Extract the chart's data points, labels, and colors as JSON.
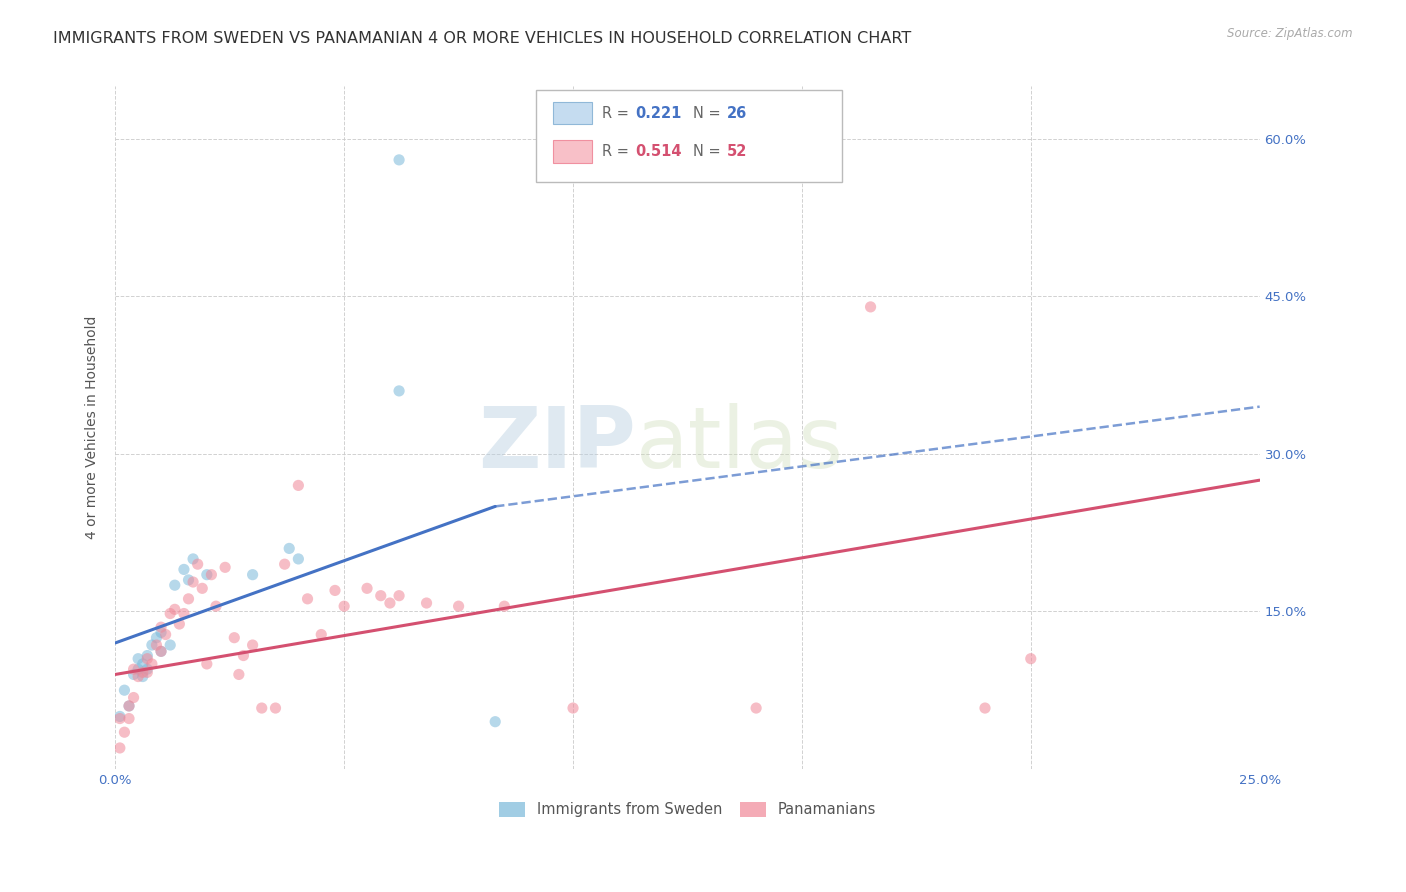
{
  "title": "IMMIGRANTS FROM SWEDEN VS PANAMANIAN 4 OR MORE VEHICLES IN HOUSEHOLD CORRELATION CHART",
  "source": "Source: ZipAtlas.com",
  "ylabel": "4 or more Vehicles in Household",
  "xlim": [
    0.0,
    0.25
  ],
  "ylim": [
    0.0,
    0.65
  ],
  "xticks": [
    0.0,
    0.05,
    0.1,
    0.15,
    0.2,
    0.25
  ],
  "yticks": [
    0.0,
    0.15,
    0.3,
    0.45,
    0.6
  ],
  "xticklabels": [
    "0.0%",
    "",
    "",
    "",
    "",
    "25.0%"
  ],
  "yticklabels_right": [
    "",
    "15.0%",
    "30.0%",
    "45.0%",
    "60.0%"
  ],
  "legend_labels_bottom": [
    "Immigrants from Sweden",
    "Panamanians"
  ],
  "watermark_zip": "ZIP",
  "watermark_atlas": "atlas",
  "sweden_color": "#7ab8d9",
  "panama_color": "#f08898",
  "sweden_line_color": "#4472c4",
  "panama_line_color": "#d45070",
  "sweden_scatter": [
    [
      0.001,
      0.05
    ],
    [
      0.002,
      0.075
    ],
    [
      0.003,
      0.06
    ],
    [
      0.004,
      0.09
    ],
    [
      0.005,
      0.095
    ],
    [
      0.006,
      0.1
    ],
    [
      0.005,
      0.105
    ],
    [
      0.007,
      0.108
    ],
    [
      0.007,
      0.095
    ],
    [
      0.006,
      0.088
    ],
    [
      0.008,
      0.118
    ],
    [
      0.009,
      0.125
    ],
    [
      0.01,
      0.112
    ],
    [
      0.01,
      0.13
    ],
    [
      0.012,
      0.118
    ],
    [
      0.013,
      0.175
    ],
    [
      0.015,
      0.19
    ],
    [
      0.016,
      0.18
    ],
    [
      0.017,
      0.2
    ],
    [
      0.02,
      0.185
    ],
    [
      0.03,
      0.185
    ],
    [
      0.038,
      0.21
    ],
    [
      0.04,
      0.2
    ],
    [
      0.062,
      0.36
    ],
    [
      0.062,
      0.58
    ],
    [
      0.083,
      0.045
    ]
  ],
  "panama_scatter": [
    [
      0.001,
      0.02
    ],
    [
      0.002,
      0.035
    ],
    [
      0.001,
      0.048
    ],
    [
      0.003,
      0.048
    ],
    [
      0.003,
      0.06
    ],
    [
      0.004,
      0.068
    ],
    [
      0.004,
      0.095
    ],
    [
      0.005,
      0.088
    ],
    [
      0.006,
      0.092
    ],
    [
      0.007,
      0.105
    ],
    [
      0.007,
      0.092
    ],
    [
      0.008,
      0.1
    ],
    [
      0.009,
      0.118
    ],
    [
      0.01,
      0.112
    ],
    [
      0.01,
      0.135
    ],
    [
      0.011,
      0.128
    ],
    [
      0.012,
      0.148
    ],
    [
      0.013,
      0.152
    ],
    [
      0.014,
      0.138
    ],
    [
      0.015,
      0.148
    ],
    [
      0.016,
      0.162
    ],
    [
      0.017,
      0.178
    ],
    [
      0.018,
      0.195
    ],
    [
      0.019,
      0.172
    ],
    [
      0.02,
      0.1
    ],
    [
      0.021,
      0.185
    ],
    [
      0.022,
      0.155
    ],
    [
      0.024,
      0.192
    ],
    [
      0.026,
      0.125
    ],
    [
      0.027,
      0.09
    ],
    [
      0.028,
      0.108
    ],
    [
      0.03,
      0.118
    ],
    [
      0.032,
      0.058
    ],
    [
      0.035,
      0.058
    ],
    [
      0.037,
      0.195
    ],
    [
      0.04,
      0.27
    ],
    [
      0.042,
      0.162
    ],
    [
      0.045,
      0.128
    ],
    [
      0.048,
      0.17
    ],
    [
      0.05,
      0.155
    ],
    [
      0.055,
      0.172
    ],
    [
      0.058,
      0.165
    ],
    [
      0.06,
      0.158
    ],
    [
      0.062,
      0.165
    ],
    [
      0.068,
      0.158
    ],
    [
      0.075,
      0.155
    ],
    [
      0.085,
      0.155
    ],
    [
      0.1,
      0.058
    ],
    [
      0.14,
      0.058
    ],
    [
      0.165,
      0.44
    ],
    [
      0.19,
      0.058
    ],
    [
      0.2,
      0.105
    ]
  ],
  "sweden_line_solid": {
    "x0": 0.0,
    "x1": 0.083,
    "y0": 0.12,
    "y1": 0.25
  },
  "sweden_line_dash": {
    "x0": 0.083,
    "x1": 0.25,
    "y0": 0.25,
    "y1": 0.345
  },
  "panama_line": {
    "x0": 0.0,
    "x1": 0.25,
    "y0": 0.09,
    "y1": 0.275
  },
  "background_color": "#ffffff",
  "grid_color": "#cccccc",
  "title_fontsize": 11.5,
  "axis_label_fontsize": 10,
  "tick_fontsize": 9.5,
  "scatter_size": 65,
  "scatter_alpha": 0.55,
  "legend_text_color_sweden": "#4472c4",
  "legend_text_color_panama": "#d45070",
  "legend_box_fill_sweden": "#c5dcf0",
  "legend_box_fill_panama": "#f8c0c8",
  "legend_box_edge_sweden": "#90b8d8",
  "legend_box_edge_panama": "#f090a0"
}
